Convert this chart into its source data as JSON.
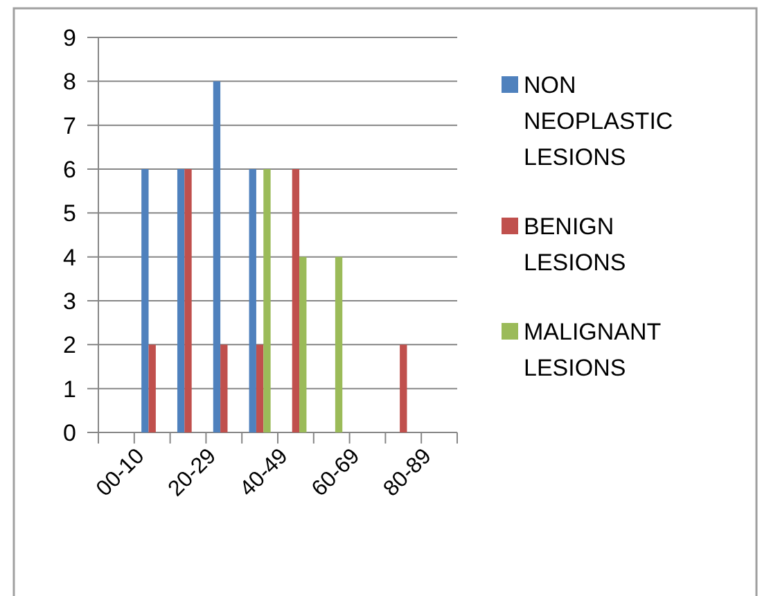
{
  "chart_data": {
    "type": "bar",
    "categories": [
      "00-10",
      null,
      "20-29",
      null,
      "40-49",
      null,
      "60-69",
      null,
      "80-89",
      null
    ],
    "series": [
      {
        "name": "NON NEOPLASTIC LESIONS",
        "color": "#4f81bd",
        "values": [
          0,
          6,
          6,
          8,
          6,
          0,
          0,
          0,
          0,
          0
        ]
      },
      {
        "name": "BENIGN LESIONS",
        "color": "#c0504d",
        "values": [
          0,
          2,
          6,
          2,
          2,
          6,
          0,
          0,
          2,
          0
        ]
      },
      {
        "name": "MALIGNANT LESIONS",
        "color": "#9bbb59",
        "values": [
          0,
          0,
          0,
          0,
          6,
          4,
          4,
          0,
          0,
          0
        ]
      }
    ],
    "ylim": [
      0,
      9
    ],
    "yticks": [
      0,
      1,
      2,
      3,
      4,
      5,
      6,
      7,
      8,
      9
    ],
    "grid": "y",
    "legend": "right"
  }
}
